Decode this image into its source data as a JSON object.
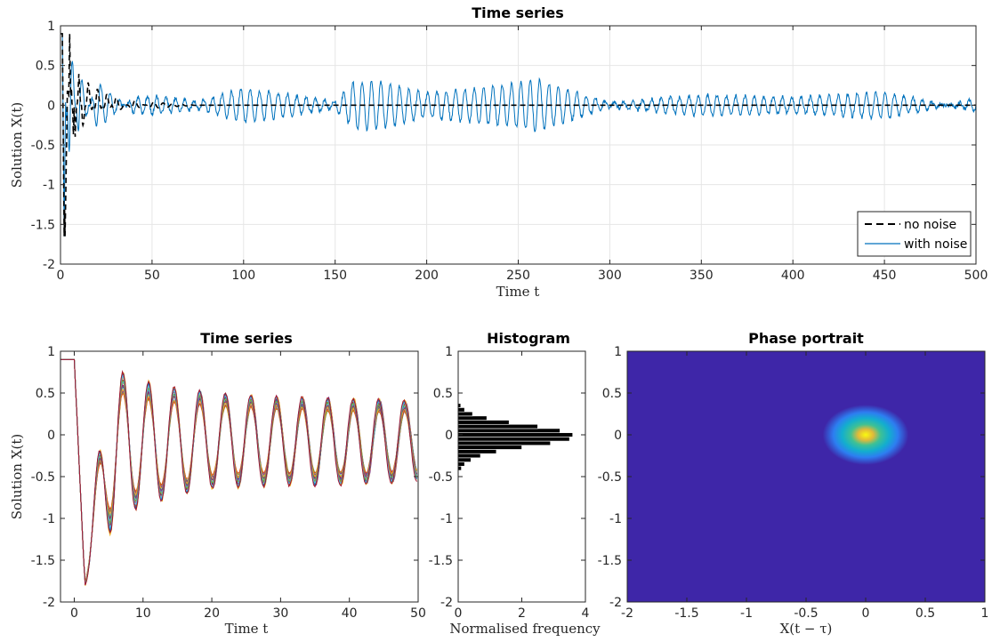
{
  "chart_data": [
    {
      "type": "line",
      "title": "Time series",
      "xlabel": "Time t",
      "ylabel": "Solution X(t)",
      "xlim": [
        0,
        500
      ],
      "ylim": [
        -2,
        1
      ],
      "xticks": [
        "0",
        "50",
        "100",
        "150",
        "200",
        "250",
        "300",
        "350",
        "400",
        "450",
        "500"
      ],
      "yticks": [
        "1",
        "0.5",
        "0",
        "-0.5",
        "-1",
        "-1.5",
        "-2"
      ],
      "grid": true,
      "legend_position": "bottom-right",
      "series": [
        {
          "name": "no noise",
          "style": "dashed",
          "color": "#000000",
          "x": [
            0,
            1,
            2,
            3,
            4,
            5,
            6,
            7,
            8,
            10,
            12,
            15,
            20,
            25,
            30,
            40,
            50,
            60,
            75,
            100,
            200,
            300,
            400,
            500
          ],
          "y": [
            0.9,
            0.9,
            -1.65,
            -0.3,
            0.6,
            -0.9,
            0.55,
            -0.5,
            0.45,
            -0.4,
            0.35,
            -0.3,
            0.22,
            -0.15,
            0.1,
            -0.06,
            0.04,
            0.02,
            0.0,
            0.0,
            0.0,
            0.0,
            0.0,
            0.0
          ]
        },
        {
          "name": "with noise",
          "style": "solid",
          "color": "#0072BD",
          "x": [
            0,
            1,
            2,
            3,
            5,
            10,
            20,
            40,
            50,
            75,
            100,
            150,
            160,
            175,
            200,
            250,
            260,
            300,
            350,
            400,
            450,
            500
          ],
          "y": [
            0.9,
            0.9,
            -1.65,
            0.6,
            -1.0,
            0.45,
            -0.3,
            0.1,
            0.12,
            0.05,
            0.22,
            0.05,
            0.3,
            0.3,
            0.15,
            0.28,
            0.33,
            0.03,
            0.13,
            0.1,
            0.17,
            -0.08
          ]
        }
      ]
    },
    {
      "type": "line",
      "title": "Time series",
      "xlabel": "Time t",
      "ylabel": "Solution X(t)",
      "xlim": [
        -2,
        50
      ],
      "ylim": [
        -2,
        1
      ],
      "xticks": [
        "0",
        "10",
        "20",
        "30",
        "40",
        "50"
      ],
      "yticks": [
        "1",
        "0.5",
        "0",
        "-0.5",
        "-1",
        "-1.5",
        "-2"
      ],
      "grid": false,
      "description_of_series": "many overlaid realisations",
      "series_colors": [
        "#0072BD",
        "#D95319",
        "#EDB120",
        "#7E2F8E",
        "#77AC30",
        "#4DBEEE",
        "#A2142F"
      ],
      "envelope": {
        "x": [
          -2,
          0,
          1.5,
          5,
          9,
          14,
          20,
          30,
          40,
          50
        ],
        "upper": [
          0.9,
          0.9,
          -1.65,
          0.72,
          0.58,
          0.5,
          0.45,
          0.4,
          0.38,
          0.35
        ],
        "lower": [
          0.9,
          0.9,
          -1.8,
          -1.08,
          -0.8,
          -0.68,
          -0.58,
          -0.55,
          -0.55,
          -0.5
        ]
      }
    },
    {
      "type": "bar",
      "orientation": "horizontal",
      "title": "Histogram",
      "xlabel": "Normalised frequency",
      "ylabel": "",
      "xlim": [
        0,
        4
      ],
      "ylim": [
        -2,
        1
      ],
      "xticks": [
        "0",
        "2",
        "4"
      ],
      "yticks": [
        "1",
        "0.5",
        "0",
        "-0.5",
        "-1",
        "-1.5",
        "-2"
      ],
      "grid": false,
      "bin_centers": [
        -0.4,
        -0.35,
        -0.3,
        -0.25,
        -0.2,
        -0.15,
        -0.1,
        -0.05,
        0.0,
        0.05,
        0.1,
        0.15,
        0.2,
        0.25,
        0.3,
        0.35
      ],
      "values": [
        0.1,
        0.2,
        0.4,
        0.7,
        1.2,
        2.0,
        2.9,
        3.5,
        3.6,
        3.2,
        2.5,
        1.6,
        0.9,
        0.45,
        0.2,
        0.08
      ]
    },
    {
      "type": "heatmap",
      "title": "Phase portrait",
      "xlabel": "X(t − τ)",
      "ylabel": "",
      "xlim": [
        -2,
        1
      ],
      "ylim": [
        -2,
        1
      ],
      "xticks": [
        "-2",
        "-1.5",
        "-1",
        "-0.5",
        "0",
        "0.5",
        "1"
      ],
      "yticks": [
        "1",
        "0.5",
        "0",
        "-0.5",
        "-1",
        "-1.5",
        "-2"
      ],
      "colormap": "parula",
      "background_color": "#3E26A8",
      "peak": {
        "x": 0.0,
        "y": 0.0,
        "sigma": 0.12
      }
    }
  ]
}
